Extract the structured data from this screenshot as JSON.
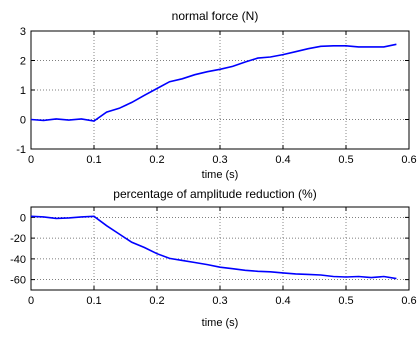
{
  "chart_data": [
    {
      "type": "line",
      "title": "normal force (N)",
      "xlabel": "time (s)",
      "ylabel": "",
      "xlim": [
        0,
        0.6
      ],
      "ylim": [
        -1,
        3
      ],
      "xticks": [
        "0",
        "0.1",
        "0.2",
        "0.3",
        "0.4",
        "0.5",
        "0.6"
      ],
      "yticks": [
        "-1",
        "0",
        "1",
        "2",
        "3"
      ],
      "grid": true,
      "color": "#0000ff",
      "x": [
        0,
        0.02,
        0.04,
        0.06,
        0.08,
        0.1,
        0.12,
        0.14,
        0.16,
        0.18,
        0.2,
        0.22,
        0.24,
        0.26,
        0.28,
        0.3,
        0.32,
        0.34,
        0.36,
        0.38,
        0.4,
        0.42,
        0.44,
        0.46,
        0.48,
        0.5,
        0.52,
        0.54,
        0.56,
        0.58
      ],
      "y": [
        0.0,
        -0.03,
        0.02,
        -0.02,
        0.02,
        -0.05,
        0.25,
        0.38,
        0.58,
        0.82,
        1.05,
        1.28,
        1.38,
        1.52,
        1.62,
        1.7,
        1.8,
        1.95,
        2.08,
        2.12,
        2.2,
        2.3,
        2.4,
        2.48,
        2.5,
        2.5,
        2.46,
        2.46,
        2.46,
        2.55
      ]
    },
    {
      "type": "line",
      "title": "percentage of amplitude reduction (%)",
      "xlabel": "time (s)",
      "ylabel": "",
      "xlim": [
        0,
        0.6
      ],
      "ylim": [
        -70,
        10
      ],
      "xticks": [
        "0",
        "0.1",
        "0.2",
        "0.3",
        "0.4",
        "0.5",
        "0.6"
      ],
      "yticks": [
        "-60",
        "-40",
        "-20",
        "0"
      ],
      "grid": true,
      "color": "#0000ff",
      "x": [
        0,
        0.02,
        0.04,
        0.06,
        0.08,
        0.1,
        0.12,
        0.14,
        0.16,
        0.18,
        0.2,
        0.22,
        0.24,
        0.26,
        0.28,
        0.3,
        0.32,
        0.34,
        0.36,
        0.38,
        0.4,
        0.42,
        0.44,
        0.46,
        0.48,
        0.5,
        0.52,
        0.54,
        0.56,
        0.58
      ],
      "y": [
        1,
        0.5,
        -1,
        -0.5,
        0.5,
        1,
        -8,
        -16,
        -24,
        -29,
        -35,
        -39.5,
        -41.5,
        -43.5,
        -45.5,
        -48,
        -49.5,
        -51,
        -52,
        -52.5,
        -53.5,
        -54.5,
        -55,
        -55.5,
        -57,
        -57.5,
        -57,
        -58,
        -57,
        -59
      ]
    }
  ]
}
